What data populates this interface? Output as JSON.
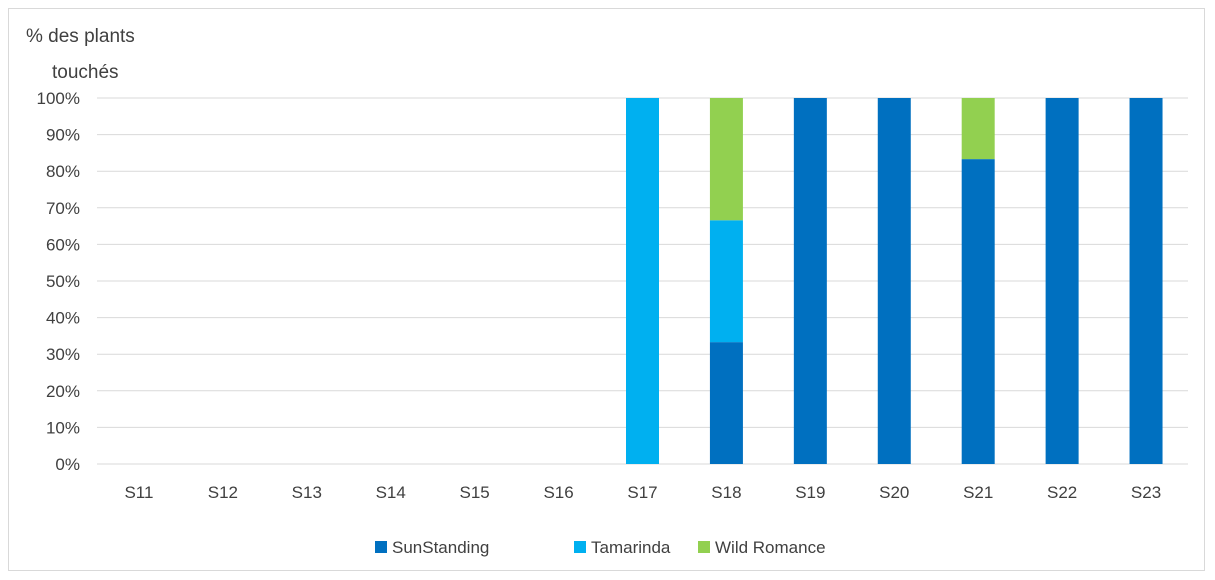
{
  "chart_data": {
    "type": "bar",
    "stacked": true,
    "percent": true,
    "ylabel_lines": [
      "% des plants",
      "touchés"
    ],
    "xlabel": "",
    "ylim": [
      0,
      100
    ],
    "y_ticks": [
      "0%",
      "10%",
      "20%",
      "30%",
      "40%",
      "50%",
      "60%",
      "70%",
      "80%",
      "90%",
      "100%"
    ],
    "categories": [
      "S11",
      "S12",
      "S13",
      "S14",
      "S15",
      "S16",
      "S17",
      "S18",
      "S19",
      "S20",
      "S21",
      "S22",
      "S23"
    ],
    "series": [
      {
        "name": "SunStanding",
        "color": "#0070C0",
        "values": [
          0,
          0,
          0,
          0,
          0,
          0,
          0,
          33.3,
          100,
          100,
          83.3,
          100,
          100
        ]
      },
      {
        "name": "Tamarinda",
        "color": "#00B0F0",
        "values": [
          0,
          0,
          0,
          0,
          0,
          0,
          100,
          33.3,
          0,
          0,
          0,
          0,
          0
        ]
      },
      {
        "name": "Wild Romance",
        "color": "#92D050",
        "values": [
          0,
          0,
          0,
          0,
          0,
          0,
          0,
          33.4,
          0,
          0,
          16.7,
          0,
          0
        ]
      }
    ],
    "grid": true,
    "legend_position": "bottom"
  }
}
